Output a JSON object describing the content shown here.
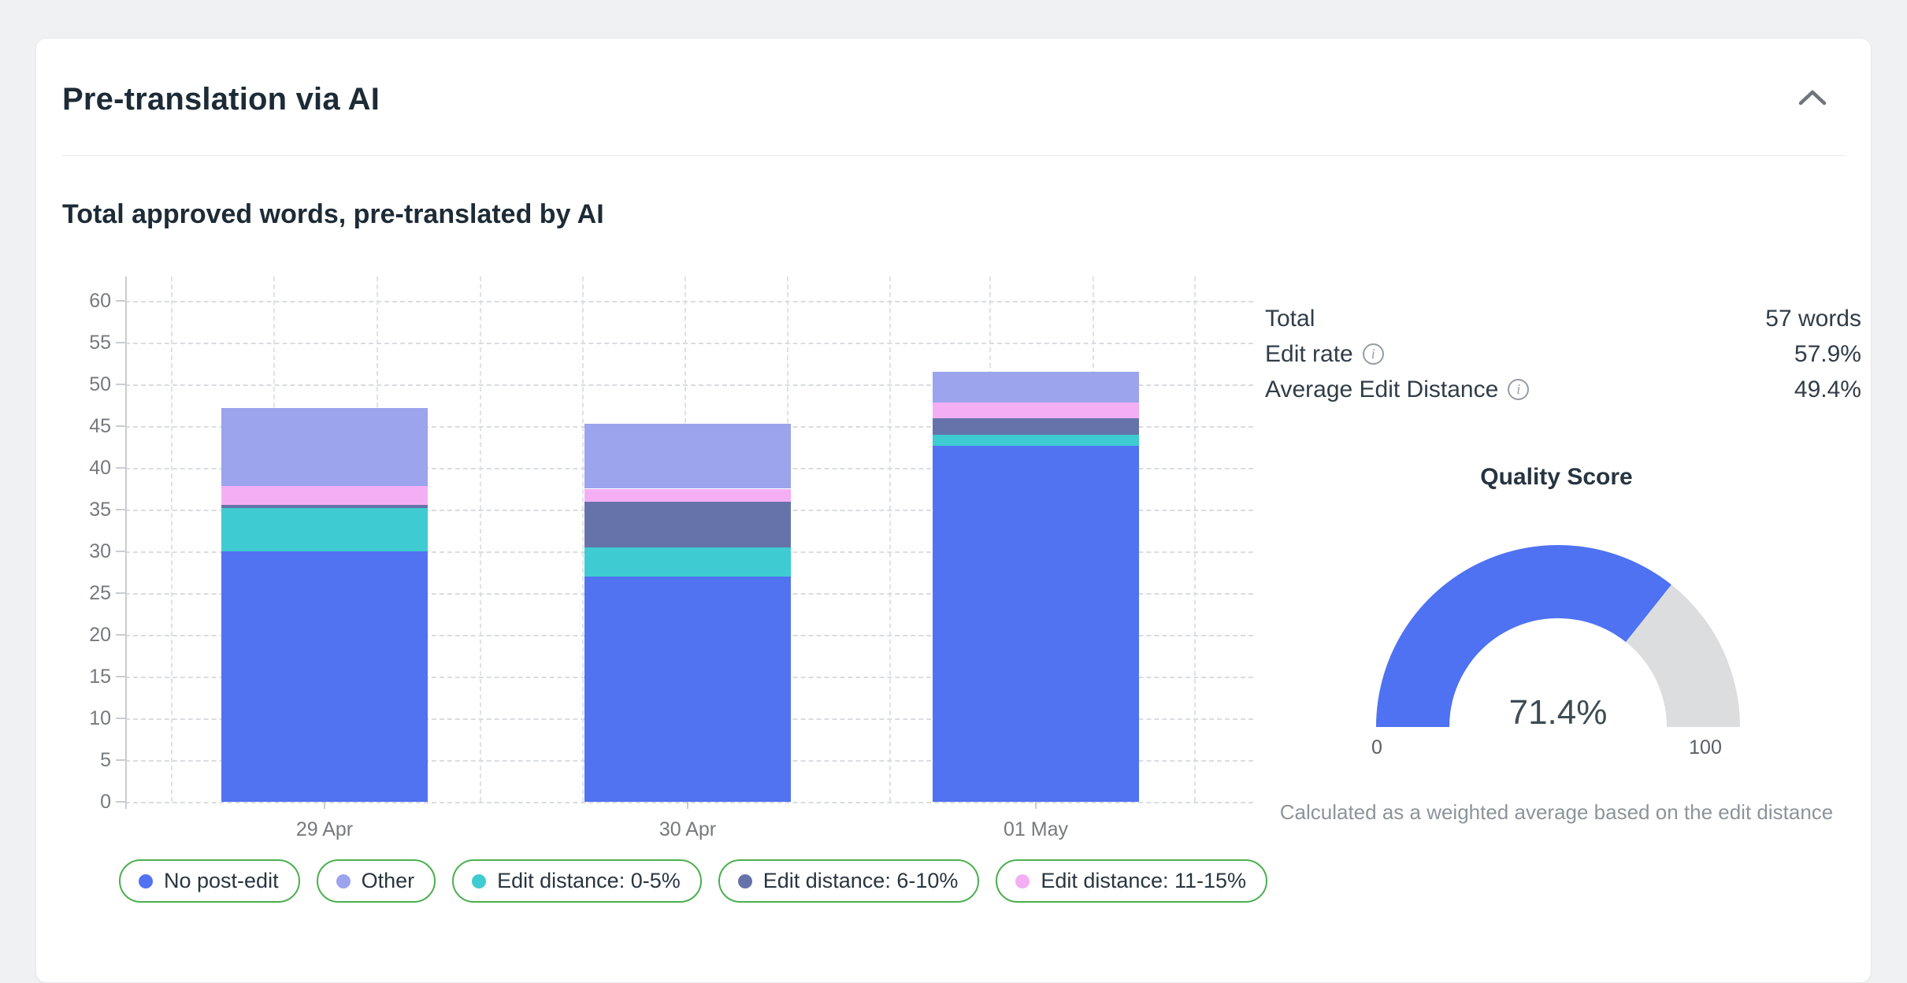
{
  "page_background": "#f0f1f3",
  "header": {
    "title": "Pre-translation via AI",
    "collapse_icon": "chevron-up"
  },
  "section": {
    "title": "Total approved words, pre-translated by AI"
  },
  "chart_data": {
    "type": "bar",
    "stacked": true,
    "categories": [
      "29 Apr",
      "30 Apr",
      "01 May"
    ],
    "series": [
      {
        "name": "No post-edit",
        "color": "#5173F2",
        "values": [
          30.0,
          27.0,
          42.6
        ]
      },
      {
        "name": "Edit distance: 0-5%",
        "color": "#3ECBD1",
        "values": [
          5.2,
          3.5,
          1.4
        ]
      },
      {
        "name": "Edit distance: 6-10%",
        "color": "#6673AB",
        "values": [
          0.4,
          5.4,
          1.9
        ]
      },
      {
        "name": "Edit distance: 11-15%",
        "color": "#F4AFF4",
        "values": [
          2.2,
          1.6,
          1.9
        ]
      },
      {
        "name": "Other",
        "color": "#9BA4EC",
        "values": [
          9.4,
          7.8,
          3.7
        ]
      }
    ],
    "title": "Total approved words, pre-translated by AI",
    "xlabel": "",
    "ylabel": "",
    "ylim": [
      0,
      60
    ],
    "yticks": [
      0,
      5,
      10,
      15,
      20,
      25,
      30,
      35,
      40,
      45,
      50,
      55,
      60
    ],
    "grid": true,
    "legend_position": "bottom"
  },
  "legend": [
    {
      "label": "No post-edit",
      "color": "#5173F2"
    },
    {
      "label": "Other",
      "color": "#9BA4EC"
    },
    {
      "label": "Edit distance: 0-5%",
      "color": "#3ECBD1"
    },
    {
      "label": "Edit distance: 6-10%",
      "color": "#6673AB"
    },
    {
      "label": "Edit distance: 11-15%",
      "color": "#F4AFF4"
    }
  ],
  "stats": [
    {
      "label": "Total",
      "value": "57 words",
      "info": false
    },
    {
      "label": "Edit rate",
      "value": "57.9%",
      "info": true
    },
    {
      "label": "Average Edit Distance",
      "value": "49.4%",
      "info": true
    }
  ],
  "gauge": {
    "title": "Quality Score",
    "value": 71.4,
    "display": "71.4%",
    "min": "0",
    "max": "100",
    "fill_color": "#4E72F1",
    "track_color": "#DCDDDE",
    "caption": "Calculated as a weighted average based on the edit distance"
  }
}
